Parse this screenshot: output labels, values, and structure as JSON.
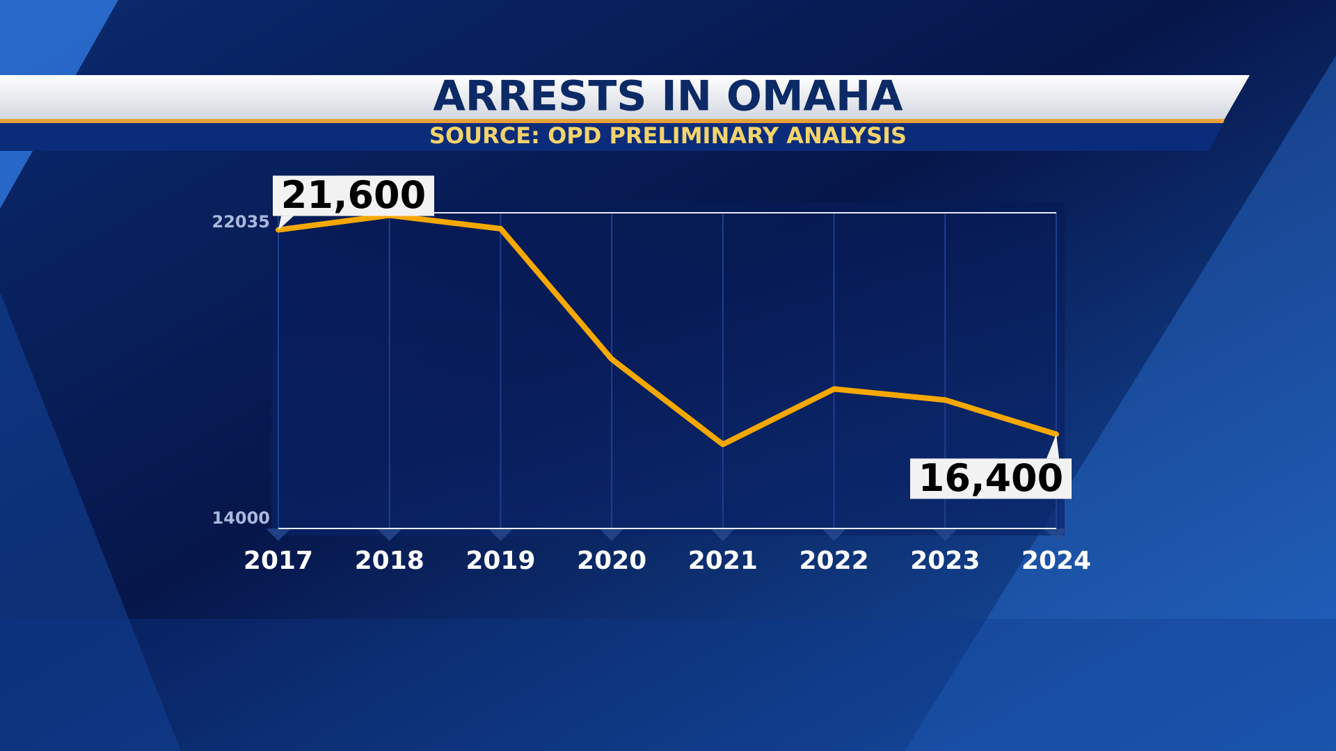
{
  "chart_data": {
    "type": "line",
    "title": "ARRESTS IN OMAHA",
    "subtitle": "SOURCE: OPD PRELIMINARY ANALYSIS",
    "categories": [
      "2017",
      "2018",
      "2019",
      "2020",
      "2021",
      "2022",
      "2023",
      "2024"
    ],
    "values": [
      21600,
      21970,
      21630,
      18310,
      16140,
      17550,
      17270,
      16400
    ],
    "value_labels": [
      "21,600",
      null,
      null,
      null,
      null,
      null,
      null,
      "16,400"
    ],
    "color": "#f5a800",
    "ylim": [
      14000,
      22035
    ],
    "yticks": [
      14000,
      22035
    ],
    "grid": true
  }
}
